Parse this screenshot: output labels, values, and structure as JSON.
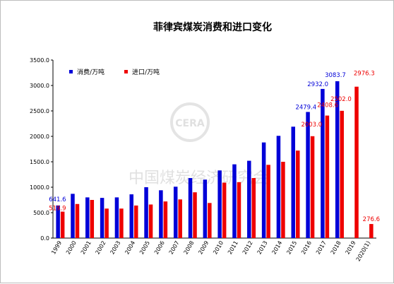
{
  "chart_data": {
    "type": "bar",
    "title": "菲律宾煤炭消费和进口变化",
    "xlabel": "",
    "ylabel": "",
    "ylim": [
      0,
      3500
    ],
    "y_ticks": [
      "0.0",
      "500.0",
      "1000.0",
      "1500.0",
      "2000.0",
      "2500.0",
      "3000.0",
      "3500.0"
    ],
    "grid": false,
    "legend_position": "top-left",
    "categories": [
      "1999",
      "2000",
      "2001",
      "2002",
      "2003",
      "2004",
      "2005",
      "2006",
      "2007",
      "2008",
      "2009",
      "2010",
      "2011",
      "2012",
      "2013",
      "2014",
      "2015",
      "2016",
      "2017",
      "2018",
      "2019",
      "2020(1)"
    ],
    "series": [
      {
        "name": "消费/万吨",
        "color": "#0000d8",
        "values": [
          641.6,
          870,
          800,
          790,
          800,
          860,
          1000,
          940,
          1010,
          1180,
          1150,
          1330,
          1450,
          1520,
          1880,
          2010,
          2190,
          2479.4,
          2932.0,
          3083.7,
          null,
          null
        ],
        "data_labels": {
          "0": "641.6",
          "17": "2479.4",
          "18": "2932.0",
          "19": "3083.7"
        }
      },
      {
        "name": "进口/万吨",
        "color": "#ee0000",
        "values": [
          519.9,
          670,
          750,
          580,
          580,
          640,
          660,
          720,
          760,
          900,
          690,
          1090,
          1100,
          1180,
          1440,
          1500,
          1720,
          2003.0,
          2408.6,
          2502.0,
          2976.3,
          276.6
        ],
        "data_labels": {
          "0": "519.9",
          "17": "2003.0",
          "18": "2408.6",
          "19": "2502.0",
          "20": "2976.3",
          "21": "276.6"
        }
      }
    ]
  },
  "watermark": {
    "text": "中国煤炭经济研究会",
    "logo_text": "CERA"
  }
}
